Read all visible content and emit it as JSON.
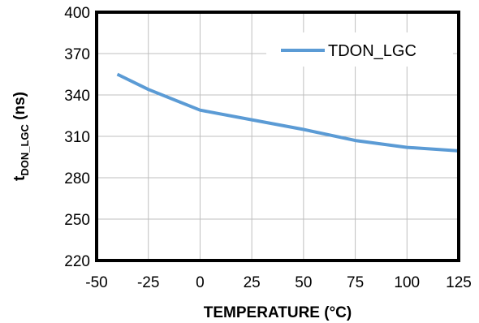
{
  "chart_data": {
    "type": "line",
    "xlabel": "TEMPERATURE (°C)",
    "ylabel_main": "t",
    "ylabel_sub": "DON_LGC",
    "ylabel_unit": " (ns)",
    "xlim": [
      -50,
      125
    ],
    "ylim": [
      220,
      400
    ],
    "xticks": [
      -50,
      -25,
      0,
      25,
      50,
      75,
      100,
      125
    ],
    "yticks": [
      220,
      250,
      280,
      310,
      340,
      370,
      400
    ],
    "grid": true,
    "legend_position": "top-right",
    "series": [
      {
        "name": "TDON_LGC",
        "color": "#5B9BD5",
        "x": [
          -40,
          -25,
          0,
          25,
          50,
          75,
          100,
          125
        ],
        "y": [
          355,
          344,
          329,
          322,
          315,
          307,
          302,
          299.5
        ]
      }
    ]
  }
}
